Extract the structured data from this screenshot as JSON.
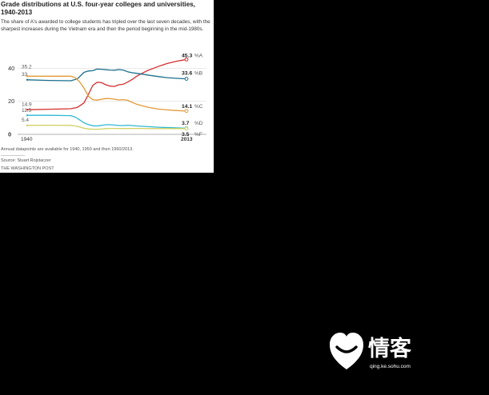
{
  "card": {
    "title": "Grade distributions at U.S. four-year colleges and universities, 1940-2013",
    "subtitle": "The share of A's awarded to college students has tripled over the last seven decades, with the sharpest increases during the Vietnam era and then the period beginning in the mid-1980s.",
    "note": "Annual datapoints are available for 1940, 1950 and then 1960/2013.",
    "source": "Source: Stuart Rojstaczer",
    "publisher": "THE WASHINGTON POST"
  },
  "watermark": {
    "chars": "情客",
    "url": "qing.ke.sohu.com"
  },
  "chart_data": {
    "type": "line",
    "xlim": [
      1940,
      2013
    ],
    "ylim": [
      0,
      45
    ],
    "yticks": [
      0,
      20,
      40
    ],
    "xtick_labels": [
      "1940",
      "2013"
    ],
    "grid": true,
    "series": [
      {
        "name": "%A",
        "color": "#d62d2d",
        "start_label": "14.9",
        "end_label": "45.3",
        "points": [
          [
            1940,
            14.9
          ],
          [
            1950,
            15.2
          ],
          [
            1960,
            15.5
          ],
          [
            1963,
            16.3
          ],
          [
            1966,
            19
          ],
          [
            1968,
            24
          ],
          [
            1970,
            29.5
          ],
          [
            1972,
            31.5
          ],
          [
            1974,
            31.3
          ],
          [
            1976,
            30
          ],
          [
            1978,
            29.2
          ],
          [
            1980,
            29
          ],
          [
            1982,
            30
          ],
          [
            1984,
            30.3
          ],
          [
            1986,
            31.6
          ],
          [
            1988,
            33.1
          ],
          [
            1990,
            35
          ],
          [
            1992,
            36.5
          ],
          [
            1995,
            38.5
          ],
          [
            1998,
            40
          ],
          [
            2001,
            41.5
          ],
          [
            2004,
            42.8
          ],
          [
            2007,
            43.8
          ],
          [
            2010,
            44.6
          ],
          [
            2013,
            45.3
          ]
        ]
      },
      {
        "name": "%B",
        "color": "#1a6f8c",
        "start_label": "33",
        "end_label": "33.6",
        "points": [
          [
            1940,
            33
          ],
          [
            1950,
            32.6
          ],
          [
            1960,
            32.4
          ],
          [
            1963,
            33.6
          ],
          [
            1966,
            37.5
          ],
          [
            1968,
            38.3
          ],
          [
            1970,
            38.5
          ],
          [
            1972,
            39.5
          ],
          [
            1974,
            39.4
          ],
          [
            1976,
            39.1
          ],
          [
            1978,
            38.9
          ],
          [
            1980,
            38.8
          ],
          [
            1982,
            39.2
          ],
          [
            1984,
            38.9
          ],
          [
            1986,
            37.9
          ],
          [
            1988,
            37.3
          ],
          [
            1990,
            36.9
          ],
          [
            1993,
            36.4
          ],
          [
            1996,
            35.7
          ],
          [
            2000,
            35
          ],
          [
            2004,
            34.3
          ],
          [
            2008,
            33.9
          ],
          [
            2013,
            33.6
          ]
        ]
      },
      {
        "name": "%C",
        "color": "#e29a38",
        "start_label": "35.2",
        "end_label": "14.1",
        "points": [
          [
            1940,
            35.2
          ],
          [
            1950,
            35.2
          ],
          [
            1960,
            35.2
          ],
          [
            1962,
            34.3
          ],
          [
            1964,
            31.8
          ],
          [
            1966,
            28
          ],
          [
            1968,
            23.2
          ],
          [
            1970,
            21
          ],
          [
            1972,
            20.7
          ],
          [
            1974,
            21.2
          ],
          [
            1976,
            21.7
          ],
          [
            1978,
            21.6
          ],
          [
            1980,
            21.3
          ],
          [
            1982,
            20.8
          ],
          [
            1984,
            21
          ],
          [
            1986,
            20.6
          ],
          [
            1988,
            19.4
          ],
          [
            1990,
            18.3
          ],
          [
            1993,
            17.2
          ],
          [
            1996,
            16.2
          ],
          [
            2000,
            15.3
          ],
          [
            2004,
            14.8
          ],
          [
            2008,
            14.4
          ],
          [
            2013,
            14.1
          ]
        ]
      },
      {
        "name": "%D",
        "color": "#2fb8d3",
        "start_label": "11.5",
        "end_label": "3.7",
        "points": [
          [
            1940,
            11.5
          ],
          [
            1950,
            11.5
          ],
          [
            1960,
            11.3
          ],
          [
            1962,
            10.4
          ],
          [
            1964,
            8.8
          ],
          [
            1966,
            7
          ],
          [
            1968,
            5.9
          ],
          [
            1970,
            5.2
          ],
          [
            1972,
            5.1
          ],
          [
            1974,
            5.4
          ],
          [
            1976,
            5.8
          ],
          [
            1978,
            5.8
          ],
          [
            1980,
            5.6
          ],
          [
            1982,
            5.3
          ],
          [
            1984,
            5.3
          ],
          [
            1986,
            5.5
          ],
          [
            1988,
            5.3
          ],
          [
            1990,
            5.1
          ],
          [
            1994,
            4.8
          ],
          [
            2000,
            4.3
          ],
          [
            2006,
            4
          ],
          [
            2013,
            3.7
          ]
        ]
      },
      {
        "name": "%F",
        "color": "#cfd160",
        "start_label": "5.4",
        "end_label": "3.5",
        "points": [
          [
            1940,
            5.4
          ],
          [
            1950,
            5.5
          ],
          [
            1960,
            5.4
          ],
          [
            1962,
            5.1
          ],
          [
            1964,
            4.5
          ],
          [
            1966,
            3.7
          ],
          [
            1968,
            3.3
          ],
          [
            1970,
            3.1
          ],
          [
            1972,
            3.1
          ],
          [
            1974,
            3.2
          ],
          [
            1976,
            3.5
          ],
          [
            1978,
            3.6
          ],
          [
            1980,
            3.6
          ],
          [
            1984,
            3.5
          ],
          [
            1988,
            3.6
          ],
          [
            1992,
            3.6
          ],
          [
            1996,
            3.5
          ],
          [
            2000,
            3.5
          ],
          [
            2005,
            3.5
          ],
          [
            2013,
            3.5
          ]
        ]
      }
    ]
  }
}
